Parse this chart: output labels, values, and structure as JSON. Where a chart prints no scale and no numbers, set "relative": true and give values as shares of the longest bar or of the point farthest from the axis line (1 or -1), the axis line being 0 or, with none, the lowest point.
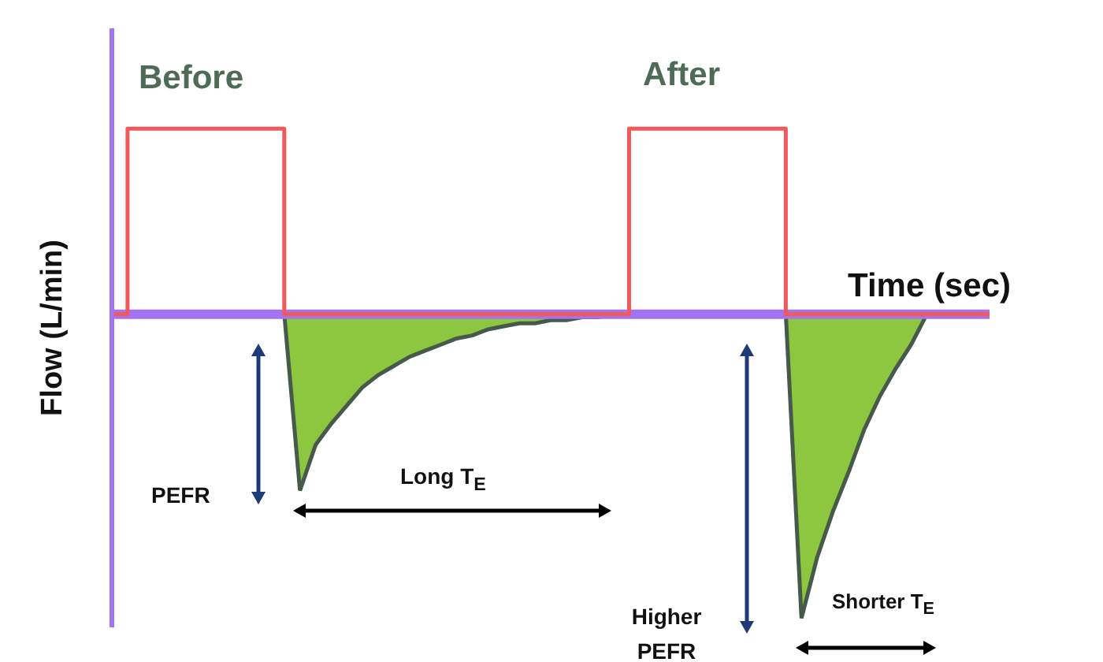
{
  "chart_data": {
    "type": "step",
    "relative": true,
    "xlabel": "Time (sec)",
    "ylabel": "Flow (L/min)",
    "ref_lines": [
      {
        "axis": "y",
        "value": 0,
        "color": "#a274f2"
      }
    ],
    "annotations": [
      "Before",
      "After",
      "PEFR",
      "Long T$_{E}$",
      "Higher PEFR",
      "Shorter T$_{E}$"
    ],
    "categories": [
      null,
      null,
      null,
      null,
      null,
      null,
      null,
      null,
      null,
      null,
      null,
      null,
      null,
      null,
      null,
      null,
      null,
      null,
      null,
      null,
      null,
      null,
      null,
      null,
      null,
      null,
      null,
      null,
      null,
      null,
      null,
      null,
      null,
      null,
      null,
      null,
      null,
      null,
      null,
      null,
      null,
      null,
      null,
      null,
      null,
      null,
      null,
      null,
      null,
      null,
      null,
      null,
      null,
      null,
      null,
      null,
      null
    ],
    "series": [
      {
        "color": "#f05a5a",
        "values": [
          0,
          0.61,
          0.61,
          0.61,
          0.61,
          0.61,
          0.61,
          0.61,
          0.61,
          0.61,
          0.61,
          0,
          0,
          0,
          0,
          0,
          0,
          0,
          0,
          0,
          0,
          0,
          0,
          0,
          0,
          0,
          0,
          0,
          0,
          0,
          0,
          0,
          0,
          0.61,
          0.61,
          0.61,
          0.61,
          0.61,
          0.61,
          0.61,
          0.61,
          0.61,
          0.61,
          0,
          0,
          0,
          0,
          0,
          0,
          0,
          0,
          0,
          0,
          0,
          0,
          0,
          0
        ]
      },
      {
        "type": "area",
        "color": "#8dc63f",
        "values": [
          0,
          0,
          0,
          0,
          0,
          0,
          0,
          0,
          0,
          0,
          0,
          0,
          -0.58,
          -0.43,
          -0.36,
          -0.3,
          -0.24,
          -0.2,
          -0.17,
          -0.14,
          -0.12,
          -0.1,
          -0.08,
          -0.07,
          -0.05,
          -0.04,
          -0.03,
          -0.03,
          -0.02,
          -0.02,
          -0.01,
          -0.01,
          0,
          0,
          0,
          0,
          0,
          0,
          0,
          0,
          0,
          0,
          0,
          0,
          -1,
          -0.8,
          -0.65,
          -0.52,
          -0.38,
          -0.27,
          -0.18,
          -0.1,
          0,
          0,
          0,
          0,
          0
        ]
      }
    ]
  }
}
